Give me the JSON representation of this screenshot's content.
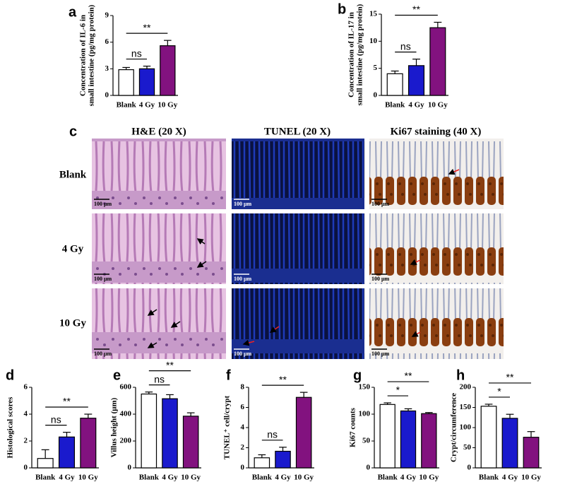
{
  "chart_data": [
    {
      "type": "bar",
      "panel_label": "a",
      "ylabel": [
        "Concentration of IL-6 in",
        "small intestine (pg/mg protein)"
      ],
      "categories": [
        "Blank",
        "4 Gy",
        "10 Gy"
      ],
      "values": [
        2.9,
        3.0,
        5.6
      ],
      "errors": [
        0.25,
        0.3,
        0.6
      ],
      "colors": [
        "#ffffff",
        "#1a1acd",
        "#82127f"
      ],
      "ylim": [
        0,
        9
      ],
      "yticks": [
        0,
        3,
        6,
        9
      ],
      "annotations": [
        {
          "text": "ns",
          "between": [
            "Blank",
            "4 Gy"
          ]
        },
        {
          "text": "**",
          "between": [
            "Blank",
            "10 Gy"
          ]
        }
      ]
    },
    {
      "type": "bar",
      "panel_label": "b",
      "ylabel": [
        "Concentration of IL-17 in",
        "small intestine (pg/mg protein)"
      ],
      "categories": [
        "Blank",
        "4 Gy",
        "10 Gy"
      ],
      "values": [
        4.0,
        5.5,
        12.5
      ],
      "errors": [
        0.5,
        1.2,
        1.0
      ],
      "colors": [
        "#ffffff",
        "#1a1acd",
        "#82127f"
      ],
      "ylim": [
        0,
        15
      ],
      "yticks": [
        0,
        5,
        10,
        15
      ],
      "annotations": [
        {
          "text": "ns",
          "between": [
            "Blank",
            "4 Gy"
          ]
        },
        {
          "text": "**",
          "between": [
            "Blank",
            "10 Gy"
          ]
        }
      ]
    },
    {
      "type": "bar",
      "panel_label": "d",
      "ylabel": [
        "Histological scores"
      ],
      "categories": [
        "Blank",
        "4 Gy",
        "10 Gy"
      ],
      "values": [
        0.7,
        2.3,
        3.7
      ],
      "errors": [
        0.65,
        0.35,
        0.3
      ],
      "colors": [
        "#ffffff",
        "#1a1acd",
        "#82127f"
      ],
      "ylim": [
        0,
        6
      ],
      "yticks": [
        0,
        2,
        4,
        6
      ],
      "annotations": [
        {
          "text": "ns",
          "between": [
            "Blank",
            "4 Gy"
          ]
        },
        {
          "text": "**",
          "between": [
            "Blank",
            "10 Gy"
          ]
        }
      ]
    },
    {
      "type": "bar",
      "panel_label": "e",
      "ylabel": [
        "Villus height (μm)"
      ],
      "categories": [
        "Blank",
        "4 Gy",
        "10 Gy"
      ],
      "values": [
        550,
        515,
        385
      ],
      "errors": [
        15,
        30,
        25
      ],
      "colors": [
        "#ffffff",
        "#1a1acd",
        "#82127f"
      ],
      "ylim": [
        0,
        600
      ],
      "yticks": [
        0,
        200,
        400,
        600
      ],
      "annotations": [
        {
          "text": "ns",
          "between": [
            "Blank",
            "4 Gy"
          ]
        },
        {
          "text": "**",
          "between": [
            "Blank",
            "10 Gy"
          ]
        }
      ]
    },
    {
      "type": "bar",
      "panel_label": "f",
      "ylabel": [
        "TUNEL⁺ cell/crypt"
      ],
      "categories": [
        "Blank",
        "4 Gy",
        "10 Gy"
      ],
      "values": [
        1.0,
        1.65,
        7.0
      ],
      "errors": [
        0.3,
        0.4,
        0.5
      ],
      "colors": [
        "#ffffff",
        "#1a1acd",
        "#82127f"
      ],
      "ylim": [
        0,
        8
      ],
      "yticks": [
        0,
        2,
        4,
        6,
        8
      ],
      "annotations": [
        {
          "text": "ns",
          "between": [
            "Blank",
            "4 Gy"
          ]
        },
        {
          "text": "**",
          "between": [
            "Blank",
            "10 Gy"
          ]
        }
      ]
    },
    {
      "type": "bar",
      "panel_label": "g",
      "ylabel": [
        "Ki67 counts"
      ],
      "categories": [
        "Blank",
        "4 Gy",
        "10 Gy"
      ],
      "values": [
        118,
        106,
        101
      ],
      "errors": [
        3,
        4,
        2
      ],
      "colors": [
        "#ffffff",
        "#1a1acd",
        "#82127f"
      ],
      "ylim": [
        0,
        150
      ],
      "yticks": [
        0,
        50,
        100,
        150
      ],
      "annotations": [
        {
          "text": "*",
          "between": [
            "Blank",
            "4 Gy"
          ]
        },
        {
          "text": "**",
          "between": [
            "Blank",
            "10 Gy"
          ]
        }
      ]
    },
    {
      "type": "bar",
      "panel_label": "h",
      "ylabel": [
        "Crypt/circumference"
      ],
      "categories": [
        "Blank",
        "4 Gy",
        "10 Gy"
      ],
      "values": [
        153,
        123,
        76
      ],
      "errors": [
        5,
        10,
        14
      ],
      "colors": [
        "#ffffff",
        "#1a1acd",
        "#82127f"
      ],
      "ylim": [
        0,
        200
      ],
      "yticks": [
        0,
        50,
        100,
        150,
        200
      ],
      "annotations": [
        {
          "text": "*",
          "between": [
            "Blank",
            "4 Gy"
          ]
        },
        {
          "text": "**",
          "between": [
            "Blank",
            "10 Gy"
          ]
        }
      ]
    }
  ],
  "micrographs": {
    "panel_label": "c",
    "columns": [
      "H&E (20 X)",
      "TUNEL (20 X)",
      "Ki67 staining (40 X)"
    ],
    "rows": [
      "Blank",
      "4 Gy",
      "10 Gy"
    ],
    "scale_bar": "100 μm"
  }
}
